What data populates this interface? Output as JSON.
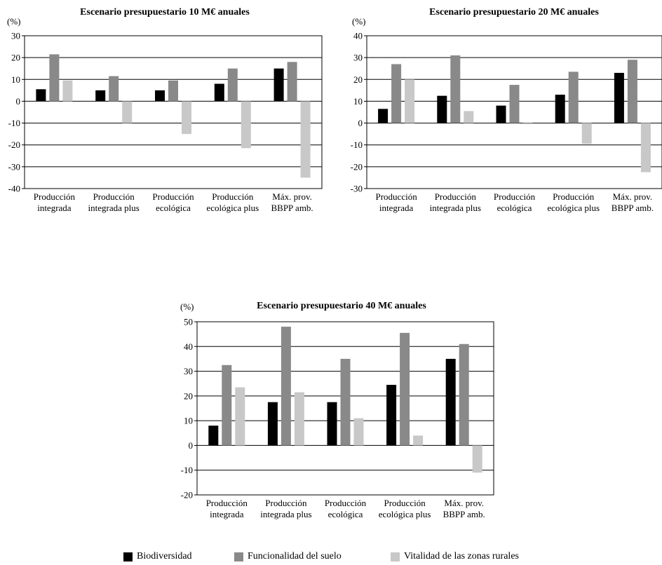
{
  "colors": {
    "Biodiversidad": "#000000",
    "Funcionalidad del suelo": "#898989",
    "Vitalidad de las zonas rurales": "#c8c8c8"
  },
  "legend": [
    "Biodiversidad",
    "Funcionalidad del suelo",
    "Vitalidad de las zonas rurales"
  ],
  "chart_data": [
    {
      "type": "bar",
      "title": "Escenario presupuestario 10 M€ anuales",
      "unit_label": "(%)",
      "categories": [
        [
          "Producción",
          "integrada"
        ],
        [
          "Producción",
          "integrada plus"
        ],
        [
          "Producción",
          "ecológica"
        ],
        [
          "Producción",
          "ecológica plus"
        ],
        [
          "Máx. prov.",
          "BBPP amb."
        ]
      ],
      "ylim": [
        -40,
        30
      ],
      "yticks": [
        -40,
        -30,
        -20,
        -10,
        0,
        10,
        20,
        30
      ],
      "grid": true,
      "series": [
        {
          "name": "Biodiversidad",
          "values": [
            5.5,
            5,
            5,
            8,
            15
          ]
        },
        {
          "name": "Funcionalidad del suelo",
          "values": [
            21.5,
            11.5,
            9.5,
            15,
            18
          ]
        },
        {
          "name": "Vitalidad de las zonas rurales",
          "values": [
            9.5,
            -10,
            -15,
            -21.5,
            -35
          ]
        }
      ]
    },
    {
      "type": "bar",
      "title": "Escenario presupuestario 20 M€ anuales",
      "unit_label": "(%)",
      "categories": [
        [
          "Producción",
          "integrada"
        ],
        [
          "Producción",
          "integrada plus"
        ],
        [
          "Producción",
          "ecológica"
        ],
        [
          "Producción",
          "ecológica plus"
        ],
        [
          "Máx. prov.",
          "BBPP amb."
        ]
      ],
      "ylim": [
        -30,
        40
      ],
      "yticks": [
        -30,
        -20,
        -10,
        0,
        10,
        20,
        30,
        40
      ],
      "grid": true,
      "series": [
        {
          "name": "Biodiversidad",
          "values": [
            6.5,
            12.5,
            8,
            13,
            23
          ]
        },
        {
          "name": "Funcionalidad del suelo",
          "values": [
            27,
            31,
            17.5,
            23.5,
            29
          ]
        },
        {
          "name": "Vitalidad de las zonas rurales",
          "values": [
            20,
            5.5,
            -0.5,
            -9.5,
            -22.5
          ]
        }
      ]
    },
    {
      "type": "bar",
      "title": "Escenario presupuestario 40 M€ anuales",
      "unit_label": "(%)",
      "categories": [
        [
          "Producción",
          "integrada"
        ],
        [
          "Producción",
          "integrada plus"
        ],
        [
          "Producción",
          "ecológica"
        ],
        [
          "Producción",
          "ecológica plus"
        ],
        [
          "Máx. prov.",
          "BBPP amb."
        ]
      ],
      "ylim": [
        -20,
        50
      ],
      "yticks": [
        -20,
        -10,
        0,
        10,
        20,
        30,
        40,
        50
      ],
      "grid": true,
      "series": [
        {
          "name": "Biodiversidad",
          "values": [
            8,
            17.5,
            17.5,
            24.5,
            35
          ]
        },
        {
          "name": "Funcionalidad del suelo",
          "values": [
            32.5,
            48,
            35,
            45.5,
            41
          ]
        },
        {
          "name": "Vitalidad de las zonas rurales",
          "values": [
            23.5,
            21.5,
            11,
            4,
            -11
          ]
        }
      ]
    }
  ]
}
